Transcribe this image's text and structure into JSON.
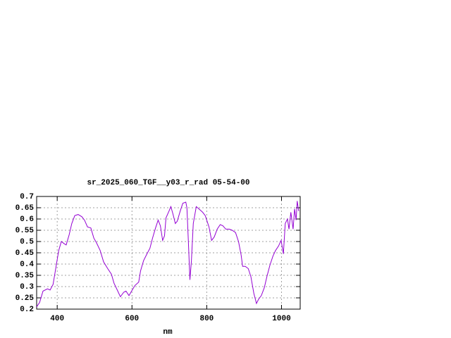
{
  "chart_data": {
    "type": "line",
    "title": "sr_2025_060_TGF__y03_r_rad 05-54-00",
    "x_label": "nm",
    "x": [
      345,
      353,
      362,
      374,
      381,
      389,
      396,
      404,
      411,
      419,
      424,
      432,
      439,
      447,
      456,
      466,
      473,
      481,
      490,
      498,
      505,
      515,
      524,
      535,
      545,
      552,
      562,
      569,
      578,
      584,
      592,
      599,
      608,
      618,
      623,
      631,
      640,
      648,
      655,
      663,
      670,
      676,
      682,
      687,
      691,
      699,
      704,
      710,
      716,
      721,
      729,
      736,
      744,
      747,
      751,
      755,
      759,
      764,
      772,
      779,
      789,
      796,
      806,
      813,
      820,
      828,
      836,
      843,
      851,
      860,
      868,
      877,
      885,
      892,
      896,
      903,
      911,
      918,
      926,
      933,
      939,
      946,
      954,
      961,
      969,
      977,
      984,
      992,
      999,
      1005,
      1010,
      1016,
      1020,
      1025,
      1031,
      1035,
      1039,
      1042,
      1046
    ],
    "series": [
      {
        "color": "#9400d3",
        "values": [
          0.21,
          0.23,
          0.28,
          0.29,
          0.285,
          0.31,
          0.38,
          0.46,
          0.5,
          0.49,
          0.485,
          0.53,
          0.58,
          0.615,
          0.62,
          0.61,
          0.595,
          0.565,
          0.56,
          0.515,
          0.495,
          0.46,
          0.41,
          0.38,
          0.355,
          0.315,
          0.28,
          0.255,
          0.275,
          0.28,
          0.26,
          0.28,
          0.305,
          0.32,
          0.37,
          0.415,
          0.445,
          0.47,
          0.515,
          0.56,
          0.595,
          0.57,
          0.505,
          0.525,
          0.605,
          0.635,
          0.655,
          0.62,
          0.58,
          0.59,
          0.635,
          0.67,
          0.675,
          0.65,
          0.495,
          0.33,
          0.415,
          0.58,
          0.655,
          0.645,
          0.63,
          0.615,
          0.565,
          0.505,
          0.52,
          0.555,
          0.575,
          0.57,
          0.555,
          0.555,
          0.55,
          0.54,
          0.5,
          0.44,
          0.39,
          0.39,
          0.38,
          0.345,
          0.27,
          0.225,
          0.245,
          0.26,
          0.295,
          0.345,
          0.395,
          0.435,
          0.46,
          0.48,
          0.505,
          0.445,
          0.58,
          0.6,
          0.555,
          0.63,
          0.555,
          0.645,
          0.595,
          0.68,
          0.635
        ]
      }
    ],
    "xlim": [
      345,
      1050
    ],
    "xticks": [
      400,
      600,
      800,
      1000
    ],
    "ylim": [
      0.2,
      0.7
    ],
    "yticks": [
      0.2,
      0.25,
      0.3,
      0.35,
      0.4,
      0.45,
      0.5,
      0.55,
      0.6,
      0.65,
      0.7
    ],
    "grid": true
  }
}
